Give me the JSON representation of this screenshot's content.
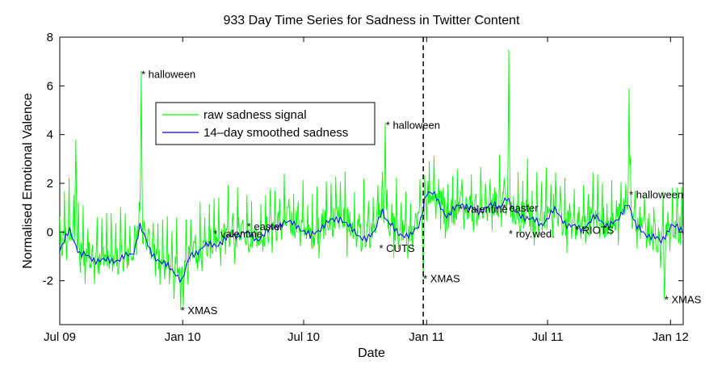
{
  "chart_data": {
    "type": "line",
    "title": "933 Day Time Series for Sadness in Twitter Content",
    "xlabel": "Date",
    "ylabel": "Normalised Emotional Valence",
    "xlim": [
      0,
      933
    ],
    "ylim": [
      -3.8,
      8
    ],
    "x_ticks": [
      {
        "day": 0,
        "label": "Jul 09"
      },
      {
        "day": 184,
        "label": "Jan 10"
      },
      {
        "day": 365,
        "label": "Jul 10"
      },
      {
        "day": 549,
        "label": "Jan 11"
      },
      {
        "day": 730,
        "label": "Jul 11"
      },
      {
        "day": 914,
        "label": "Jan 12"
      }
    ],
    "y_ticks": [
      -2,
      0,
      2,
      4,
      6,
      8
    ],
    "grid": false,
    "legend_position": "top-left-inside",
    "vline_day": 544,
    "series": [
      {
        "name": "raw sadness signal",
        "color": "#00ff00",
        "style": "raw",
        "spikes": [
          {
            "day": 24,
            "value": 3.8
          },
          {
            "day": 122,
            "value": 6.6
          },
          {
            "day": 181,
            "value": -3.2
          },
          {
            "day": 487,
            "value": 4.5
          },
          {
            "day": 544,
            "value": -1.9
          },
          {
            "day": 672,
            "value": 7.5
          },
          {
            "day": 852,
            "value": 5.9
          },
          {
            "day": 905,
            "value": -2.8
          }
        ]
      },
      {
        "name": "14–day smoothed sadness",
        "color": "#0000ff",
        "style": "smooth",
        "points": [
          [
            0,
            -0.8
          ],
          [
            15,
            0.1
          ],
          [
            30,
            -0.9
          ],
          [
            50,
            -1.1
          ],
          [
            70,
            -1.2
          ],
          [
            90,
            -1.1
          ],
          [
            110,
            -0.9
          ],
          [
            120,
            0.3
          ],
          [
            135,
            -0.8
          ],
          [
            155,
            -1.3
          ],
          [
            175,
            -1.7
          ],
          [
            183,
            -2.0
          ],
          [
            195,
            -1.0
          ],
          [
            215,
            -0.6
          ],
          [
            235,
            -0.5
          ],
          [
            255,
            -0.2
          ],
          [
            275,
            0.0
          ],
          [
            295,
            -0.3
          ],
          [
            315,
            0.1
          ],
          [
            335,
            0.4
          ],
          [
            355,
            0.3
          ],
          [
            375,
            -0.2
          ],
          [
            395,
            0.3
          ],
          [
            420,
            0.6
          ],
          [
            440,
            0.0
          ],
          [
            460,
            -0.3
          ],
          [
            470,
            -0.1
          ],
          [
            482,
            1.0
          ],
          [
            490,
            0.4
          ],
          [
            505,
            0.0
          ],
          [
            525,
            -0.2
          ],
          [
            538,
            0.3
          ],
          [
            548,
            1.6
          ],
          [
            562,
            1.5
          ],
          [
            580,
            0.6
          ],
          [
            600,
            1.2
          ],
          [
            625,
            0.8
          ],
          [
            640,
            1.1
          ],
          [
            658,
            1.0
          ],
          [
            668,
            1.5
          ],
          [
            680,
            0.8
          ],
          [
            700,
            0.6
          ],
          [
            720,
            0.3
          ],
          [
            740,
            0.9
          ],
          [
            760,
            0.3
          ],
          [
            780,
            0.1
          ],
          [
            800,
            0.6
          ],
          [
            820,
            0.3
          ],
          [
            835,
            0.4
          ],
          [
            850,
            1.3
          ],
          [
            862,
            0.2
          ],
          [
            880,
            -0.1
          ],
          [
            900,
            -0.4
          ],
          [
            915,
            0.3
          ],
          [
            933,
            0.0
          ]
        ]
      }
    ],
    "annotations": [
      {
        "day": 122,
        "value": 6.5,
        "text": "* halloween"
      },
      {
        "day": 181,
        "value": -3.2,
        "text": "* XMAS"
      },
      {
        "day": 230,
        "value": -0.05,
        "text": "* valentine"
      },
      {
        "day": 280,
        "value": 0.25,
        "text": "* easter"
      },
      {
        "day": 488,
        "value": 4.4,
        "text": "* halloween"
      },
      {
        "day": 478,
        "value": -0.65,
        "text": "* CUTS"
      },
      {
        "day": 544,
        "value": -1.9,
        "text": "* XMAS"
      },
      {
        "day": 597,
        "value": 0.95,
        "text": "* valentine"
      },
      {
        "day": 662,
        "value": 1.0,
        "text": "* easter"
      },
      {
        "day": 672,
        "value": -0.05,
        "text": "* roy.wed."
      },
      {
        "day": 771,
        "value": 0.1,
        "text": "* RIOTS"
      },
      {
        "day": 852,
        "value": 1.55,
        "text": "* halloween"
      },
      {
        "day": 905,
        "value": -2.75,
        "text": "* XMAS"
      }
    ]
  }
}
